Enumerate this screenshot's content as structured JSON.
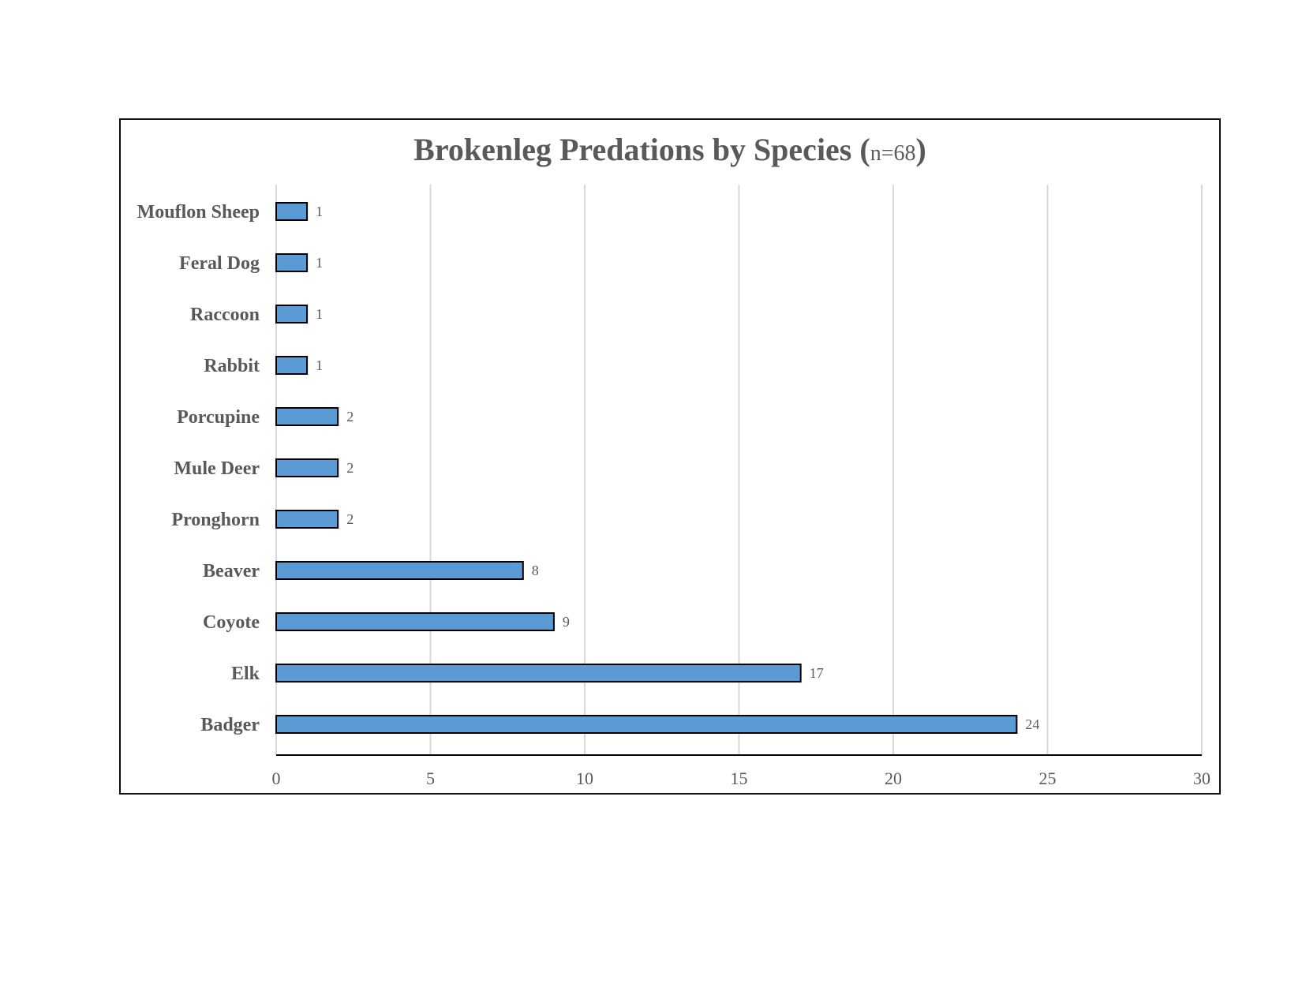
{
  "chart_data": {
    "type": "bar",
    "orientation": "horizontal",
    "title": "Brokenleg Predations by Species",
    "title_suffix_open": "(",
    "title_suffix_note": "n=68",
    "title_suffix_close": ")",
    "categories": [
      "Mouflon Sheep",
      "Feral Dog",
      "Raccoon",
      "Rabbit",
      "Porcupine",
      "Mule Deer",
      "Pronghorn",
      "Beaver",
      "Coyote",
      "Elk",
      "Badger"
    ],
    "values": [
      1,
      1,
      1,
      1,
      2,
      2,
      2,
      8,
      9,
      17,
      24
    ],
    "xlim": [
      0,
      30
    ],
    "xticks": [
      0,
      5,
      10,
      15,
      20,
      25,
      30
    ],
    "xlabel": "",
    "ylabel": "",
    "grid": true,
    "data_labels": true,
    "legend": "none",
    "colors": {
      "bar_fill": "#5b9bd5",
      "bar_outline": "#000000",
      "grid": "#d9d9d9",
      "text": "#595959"
    }
  }
}
